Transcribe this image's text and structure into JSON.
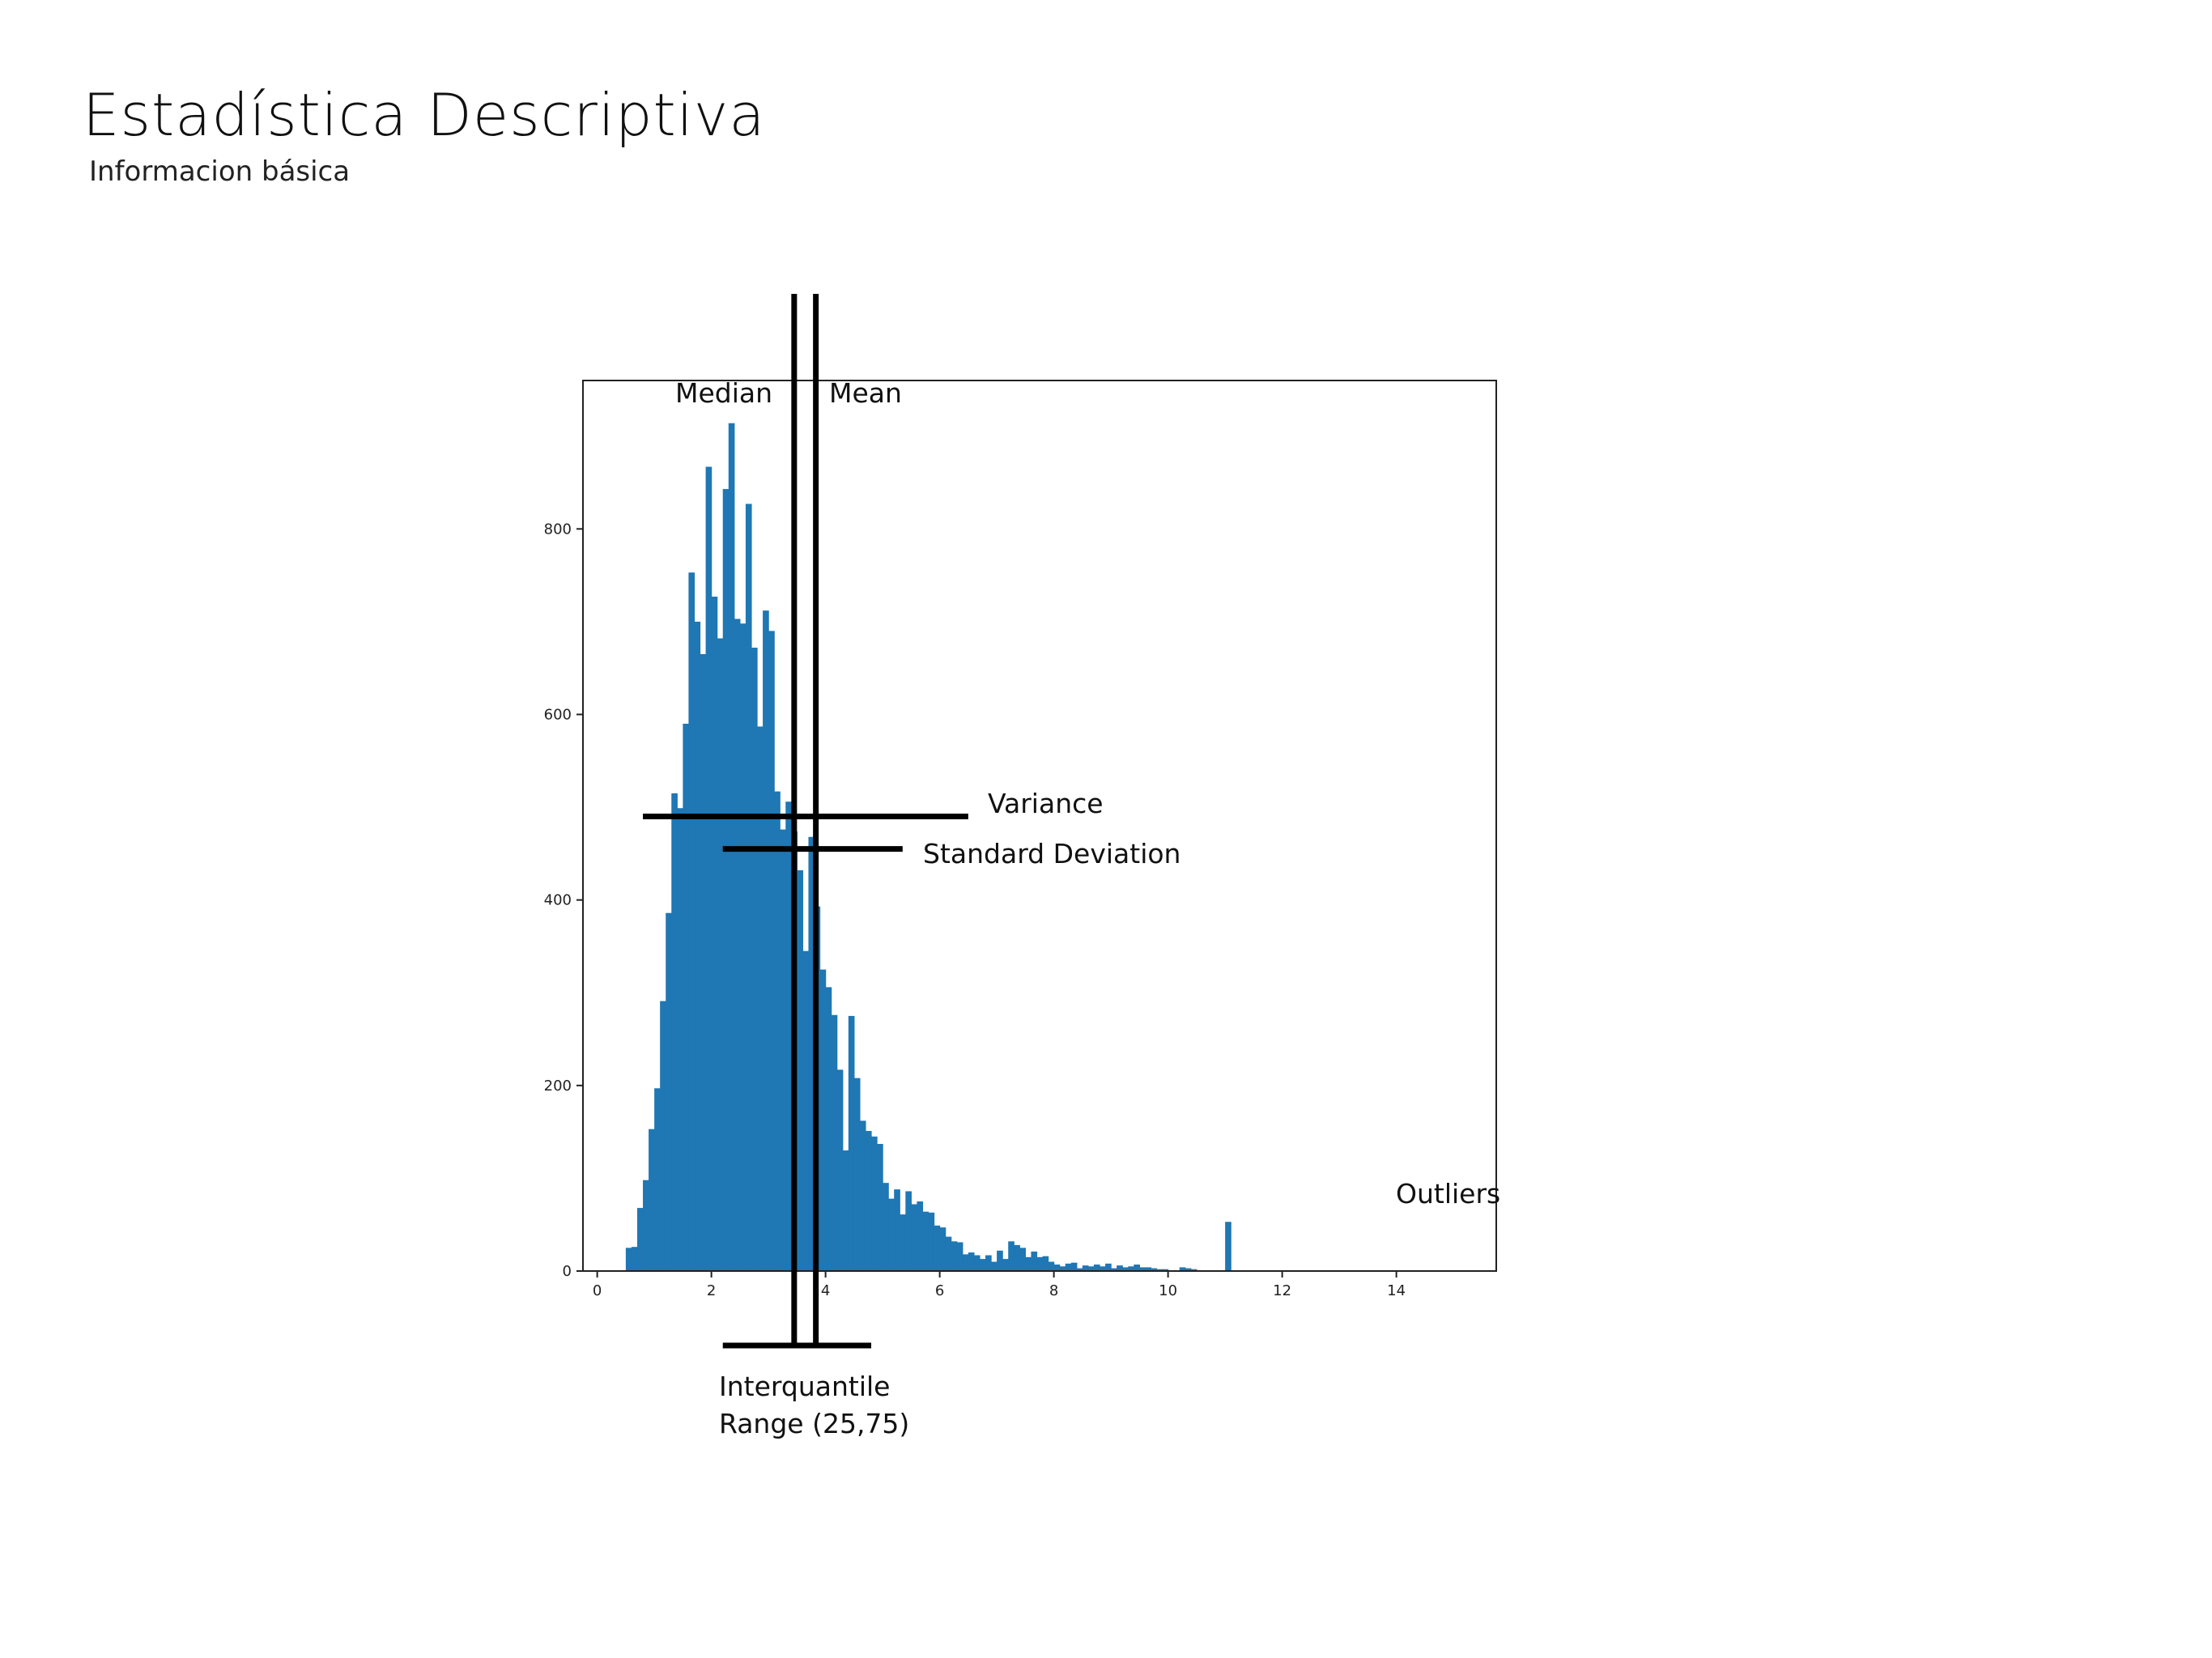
{
  "page": {
    "title": "Estadística Descriptiva",
    "subtitle": "Informacion básica"
  },
  "chart_data": {
    "type": "bar",
    "title": "",
    "xlabel": "",
    "ylabel": "",
    "bar_color": "#1f77b4",
    "bin_start": 0.5,
    "bin_width": 0.1,
    "values": [
      25,
      26,
      68,
      98,
      153,
      197,
      291,
      386,
      515,
      499,
      590,
      753,
      700,
      665,
      867,
      727,
      682,
      843,
      914,
      703,
      698,
      827,
      672,
      587,
      712,
      690,
      517,
      476,
      506,
      474,
      432,
      345,
      468,
      393,
      325,
      306,
      276,
      217,
      130,
      275,
      208,
      162,
      151,
      145,
      137,
      95,
      78,
      88,
      61,
      86,
      72,
      75,
      64,
      63,
      49,
      47,
      37,
      32,
      31,
      18,
      20,
      17,
      13,
      17,
      10,
      22,
      13,
      32,
      28,
      25,
      15,
      21,
      15,
      16,
      10,
      7,
      5,
      8,
      9,
      3,
      6,
      5,
      7,
      5,
      8,
      3,
      6,
      4,
      5,
      7,
      4,
      4,
      3,
      2,
      2,
      0,
      0,
      4,
      3,
      2,
      0,
      0,
      0,
      0,
      0,
      53
    ],
    "xlim": [
      -0.25,
      15.75
    ],
    "ylim": [
      0,
      960
    ],
    "xticks": [
      0,
      2,
      4,
      6,
      8,
      10,
      12,
      14
    ],
    "yticks": [
      0,
      200,
      400,
      600,
      800
    ],
    "annotations": {
      "median": {
        "label": "Median",
        "x": 3.45
      },
      "mean": {
        "label": "Mean",
        "x": 3.83
      },
      "variance": {
        "label": "Variance",
        "x_from": 0.8,
        "x_to": 6.5,
        "y": 490
      },
      "std_dev": {
        "label": "Standard Deviation",
        "x_from": 2.2,
        "x_to": 5.35,
        "y": 455
      },
      "iqr": {
        "label_line1": "Interquantile",
        "label_line2": "Range (25,75)",
        "x_from": 2.2,
        "x_to": 4.8
      },
      "outliers": {
        "label": "Outliers"
      }
    }
  }
}
